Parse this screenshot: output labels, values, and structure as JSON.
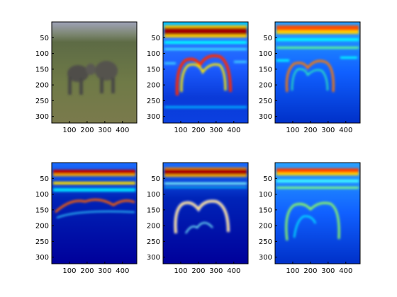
{
  "chart_data": [
    {
      "type": "heatmap",
      "panel": "photo",
      "image": "rhinos-in-grassland-photo",
      "xlim": [
        0,
        481
      ],
      "ylim": [
        321,
        0
      ],
      "xticks": [
        100,
        200,
        300,
        400
      ],
      "yticks": [
        50,
        100,
        150,
        200,
        250,
        300
      ]
    },
    {
      "type": "heatmap",
      "panel": "response-1",
      "colormap": "jet",
      "xlim": [
        0,
        481
      ],
      "ylim": [
        321,
        0
      ],
      "xticks": [
        100,
        200,
        300,
        400
      ],
      "yticks": [
        50,
        100,
        150,
        200,
        250,
        300
      ]
    },
    {
      "type": "heatmap",
      "panel": "response-2",
      "colormap": "jet",
      "xlim": [
        0,
        481
      ],
      "ylim": [
        321,
        0
      ],
      "xticks": [
        100,
        200,
        300,
        400
      ],
      "yticks": [
        50,
        100,
        150,
        200,
        250,
        300
      ]
    },
    {
      "type": "heatmap",
      "panel": "response-3",
      "colormap": "jet",
      "xlim": [
        0,
        481
      ],
      "ylim": [
        321,
        0
      ],
      "xticks": [
        100,
        200,
        300,
        400
      ],
      "yticks": [
        50,
        100,
        150,
        200,
        250,
        300
      ]
    },
    {
      "type": "heatmap",
      "panel": "response-4",
      "colormap": "jet",
      "xlim": [
        0,
        481
      ],
      "ylim": [
        321,
        0
      ],
      "xticks": [
        100,
        200,
        300,
        400
      ],
      "yticks": [
        50,
        100,
        150,
        200,
        250,
        300
      ]
    },
    {
      "type": "heatmap",
      "panel": "response-5",
      "colormap": "jet",
      "xlim": [
        0,
        481
      ],
      "ylim": [
        321,
        0
      ],
      "xticks": [
        100,
        200,
        300,
        400
      ],
      "yticks": [
        50,
        100,
        150,
        200,
        250,
        300
      ]
    }
  ],
  "colors": {
    "jet_low": "#00008f",
    "jet_mid_low": "#0050ff",
    "jet_mid": "#00ffff",
    "jet_high": "#ffff00",
    "jet_max": "#800000",
    "photo_sky": "#8a90a8",
    "photo_grass": "#6e7a46",
    "photo_rhino": "#4e4d48"
  }
}
